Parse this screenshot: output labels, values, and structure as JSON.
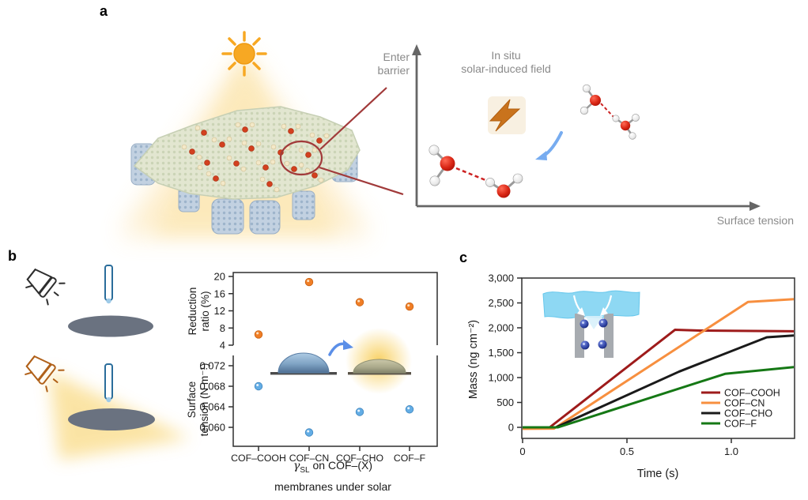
{
  "panels": {
    "a": "a",
    "b": "b",
    "c": "c"
  },
  "panel_a": {
    "axis_y_label_line1": "Enter",
    "axis_y_label_line2": "barrier",
    "annotation_line1": "In situ",
    "annotation_line2": "solar-induced field",
    "axis_x_label": "Surface tension",
    "icons": {
      "sun": "sun-icon",
      "lightning": "lightning-bolt-icon",
      "water_dimer": "water-molecule-icon",
      "curved_arrow": "curved-arrow-icon",
      "membrane": "cof-membrane-illustration",
      "magnified_region": "magnifier-circle"
    }
  },
  "panel_b": {
    "apparatus_icons": {
      "lamp_off": "lamp-icon",
      "lamp_on": "lamp-glow-icon",
      "syringe": "syringe-icon",
      "membrane_disk": "membrane-disk",
      "droplet_dark": "droplet-dark-icon",
      "droplet_solar": "droplet-solar-icon"
    },
    "xlabel_gamma": "γ",
    "xlabel_gamma_sub": "SL",
    "xlabel_rest": " on COF–(X)",
    "xlabel_line2": "membranes under solar"
  },
  "panel_c": {
    "ylabel": "Mass (ng cm⁻²)",
    "xlabel": "Time (s)"
  },
  "chart_data": [
    {
      "panel": "b",
      "type": "scatter",
      "categories": [
        "COF–COOH",
        "COF–CN",
        "COF–CHO",
        "COF–F"
      ],
      "top_axis": {
        "ylabel_line1": "Reduction",
        "ylabel_line2": "ratio (%)",
        "ticks": [
          20,
          16,
          12,
          8,
          4
        ],
        "ylim": [
          4,
          20
        ],
        "series_name": "Reduction ratio (%)",
        "values": [
          6.5,
          18.7,
          14,
          13
        ],
        "color": "#F07E26"
      },
      "bottom_axis": {
        "ylabel_line1": "Surface",
        "ylabel_line2": "tension (N m⁻¹)",
        "tick_labels": [
          "0.072",
          "0.068",
          "0.064",
          "0.060"
        ],
        "series_name": "Surface tension (N m⁻¹)",
        "values": [
          0.068,
          0.059,
          0.063,
          0.0635
        ],
        "color": "#63ADE5"
      },
      "xlabel": "γSL on COF–(X) membranes under solar",
      "broken_y_axis": true
    },
    {
      "panel": "c",
      "type": "line",
      "xlabel": "Time (s)",
      "ylabel": "Mass (ng cm⁻²)",
      "xlim": [
        0,
        1.3
      ],
      "ylim": [
        -220,
        3000
      ],
      "grid": false,
      "legend_position": "inside-right",
      "x_ticks": [
        {
          "v": 0,
          "label": "0"
        },
        {
          "v": 0.5,
          "label": "0.5"
        },
        {
          "v": 1,
          "label": "1.0"
        }
      ],
      "y_ticks": [
        {
          "v": 0,
          "label": "0"
        },
        {
          "v": 500,
          "label": "500"
        },
        {
          "v": 1000,
          "label": "1,000"
        },
        {
          "v": 1500,
          "label": "1,500"
        },
        {
          "v": 2000,
          "label": "2,000"
        },
        {
          "v": 2500,
          "label": "2,500"
        },
        {
          "v": 3000,
          "label": "3,000"
        }
      ],
      "series": [
        {
          "name": "COF–COOH",
          "color": "#9E1B1B",
          "points": [
            [
              0,
              0
            ],
            [
              0.13,
              0
            ],
            [
              0.73,
              1960
            ],
            [
              0.85,
              1945
            ],
            [
              1.3,
              1930
            ]
          ]
        },
        {
          "name": "COF–CN",
          "color": "#F78F3F",
          "points": [
            [
              0,
              -30
            ],
            [
              0.15,
              -25
            ],
            [
              1.08,
              2520
            ],
            [
              1.3,
              2575
            ]
          ]
        },
        {
          "name": "COF–CHO",
          "color": "#1A1A1A",
          "points": [
            [
              0,
              0
            ],
            [
              0.16,
              0
            ],
            [
              0.75,
              1120
            ],
            [
              1.17,
              1810
            ],
            [
              1.3,
              1845
            ]
          ]
        },
        {
          "name": "COF–F",
          "color": "#157815",
          "points": [
            [
              0,
              0
            ],
            [
              0.17,
              0
            ],
            [
              0.97,
              1075
            ],
            [
              1.3,
              1210
            ]
          ]
        }
      ]
    }
  ]
}
